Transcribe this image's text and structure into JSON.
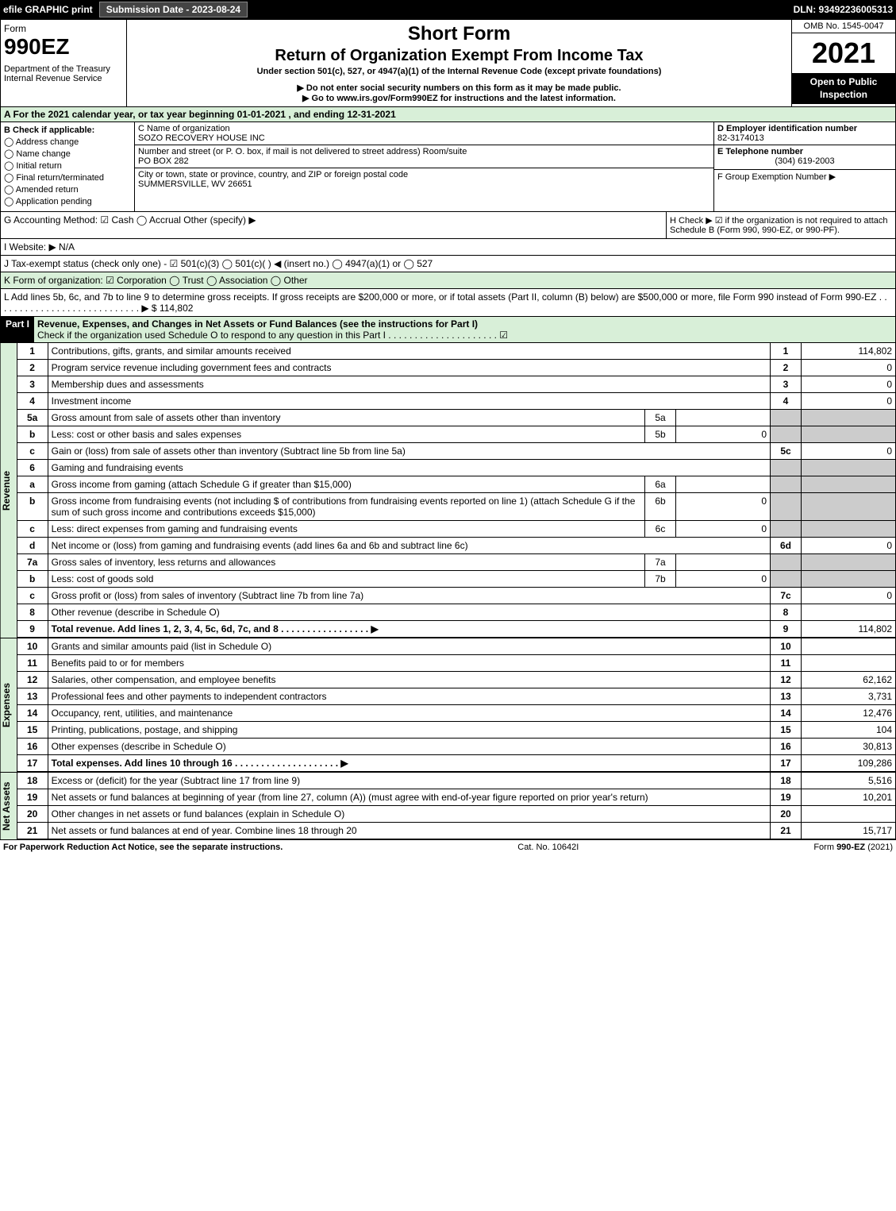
{
  "topbar": {
    "efile": "efile GRAPHIC print",
    "subdate": "Submission Date - 2023-08-24",
    "dln": "DLN: 93492236005313"
  },
  "header": {
    "form": "Form",
    "formnum": "990EZ",
    "dept": "Department of the Treasury\nInternal Revenue Service",
    "short": "Short Form",
    "title": "Return of Organization Exempt From Income Tax",
    "under": "Under section 501(c), 527, or 4947(a)(1) of the Internal Revenue Code (except private foundations)",
    "warn": "▶ Do not enter social security numbers on this form as it may be made public.",
    "goto": "▶ Go to www.irs.gov/Form990EZ for instructions and the latest information.",
    "omb": "OMB No. 1545-0047",
    "year": "2021",
    "open": "Open to Public Inspection"
  },
  "lineA": "A  For the 2021 calendar year, or tax year beginning 01-01-2021 , and ending 12-31-2021",
  "B": {
    "label": "B  Check if applicable:",
    "opts": [
      "Address change",
      "Name change",
      "Initial return",
      "Final return/terminated",
      "Amended return",
      "Application pending"
    ]
  },
  "C": {
    "nameLabel": "C Name of organization",
    "name": "SOZO RECOVERY HOUSE INC",
    "addrLabel": "Number and street (or P. O. box, if mail is not delivered to street address)      Room/suite",
    "addr": "PO BOX 282",
    "cityLabel": "City or town, state or province, country, and ZIP or foreign postal code",
    "city": "SUMMERSVILLE, WV  26651"
  },
  "D": {
    "einLabel": "D Employer identification number",
    "ein": "82-3174013",
    "telLabel": "E Telephone number",
    "tel": "(304) 619-2003",
    "grpLabel": "F Group Exemption Number  ▶"
  },
  "G": "G Accounting Method:   ☑ Cash  ◯ Accrual   Other (specify) ▶",
  "H": "H   Check ▶  ☑  if the organization is not required to attach Schedule B (Form 990, 990-EZ, or 990-PF).",
  "I": "I Website: ▶ N/A",
  "J": "J Tax-exempt status (check only one) -  ☑ 501(c)(3) ◯ 501(c)(  ) ◀ (insert no.) ◯ 4947(a)(1) or ◯ 527",
  "K": "K Form of organization:   ☑ Corporation  ◯ Trust  ◯ Association  ◯ Other",
  "L": "L Add lines 5b, 6c, and 7b to line 9 to determine gross receipts. If gross receipts are $200,000 or more, or if total assets (Part II, column (B) below) are $500,000 or more, file Form 990 instead of Form 990-EZ  .  .  .  .  .  .  .  .  .  .  .  .  .  .  .  .  .  .  .  .  .  .  .  .  .  .  .  .   ▶ $ 114,802",
  "part1": {
    "hdr": "Part I",
    "title": "Revenue, Expenses, and Changes in Net Assets or Fund Balances (see the instructions for Part I)",
    "check": "Check if the organization used Schedule O to respond to any question in this Part I .  .  .  .  .  .  .  .  .  .  .  .  .  .  .  .  .  .  .  .  .  ☑"
  },
  "sections": {
    "rev": "Revenue",
    "exp": "Expenses",
    "net": "Net Assets"
  },
  "lines": [
    {
      "n": "1",
      "d": "Contributions, gifts, grants, and similar amounts received",
      "b": "1",
      "v": "114,802"
    },
    {
      "n": "2",
      "d": "Program service revenue including government fees and contracts",
      "b": "2",
      "v": "0"
    },
    {
      "n": "3",
      "d": "Membership dues and assessments",
      "b": "3",
      "v": "0"
    },
    {
      "n": "4",
      "d": "Investment income",
      "b": "4",
      "v": "0"
    },
    {
      "n": "5a",
      "d": "Gross amount from sale of assets other than inventory",
      "sb": "5a",
      "sv": "",
      "grey": true
    },
    {
      "n": "b",
      "d": "Less: cost or other basis and sales expenses",
      "sb": "5b",
      "sv": "0",
      "grey": true
    },
    {
      "n": "c",
      "d": "Gain or (loss) from sale of assets other than inventory (Subtract line 5b from line 5a)",
      "b": "5c",
      "v": "0"
    },
    {
      "n": "6",
      "d": "Gaming and fundraising events",
      "grey": true
    },
    {
      "n": "a",
      "d": "Gross income from gaming (attach Schedule G if greater than $15,000)",
      "sb": "6a",
      "sv": "",
      "grey": true
    },
    {
      "n": "b",
      "d": "Gross income from fundraising events (not including $                              of contributions from fundraising events reported on line 1) (attach Schedule G if the sum of such gross income and contributions exceeds $15,000)",
      "sb": "6b",
      "sv": "0",
      "grey": true
    },
    {
      "n": "c",
      "d": "Less: direct expenses from gaming and fundraising events",
      "sb": "6c",
      "sv": "0",
      "grey": true
    },
    {
      "n": "d",
      "d": "Net income or (loss) from gaming and fundraising events (add lines 6a and 6b and subtract line 6c)",
      "b": "6d",
      "v": "0"
    },
    {
      "n": "7a",
      "d": "Gross sales of inventory, less returns and allowances",
      "sb": "7a",
      "sv": "",
      "grey": true
    },
    {
      "n": "b",
      "d": "Less: cost of goods sold",
      "sb": "7b",
      "sv": "0",
      "grey": true
    },
    {
      "n": "c",
      "d": "Gross profit or (loss) from sales of inventory (Subtract line 7b from line 7a)",
      "b": "7c",
      "v": "0"
    },
    {
      "n": "8",
      "d": "Other revenue (describe in Schedule O)",
      "b": "8",
      "v": ""
    },
    {
      "n": "9",
      "d": "Total revenue. Add lines 1, 2, 3, 4, 5c, 6d, 7c, and 8   .  .  .  .  .  .  .  .  .  .  .  .  .  .  .  .  .  ▶",
      "b": "9",
      "v": "114,802",
      "bold": true
    }
  ],
  "exp": [
    {
      "n": "10",
      "d": "Grants and similar amounts paid (list in Schedule O)",
      "b": "10",
      "v": ""
    },
    {
      "n": "11",
      "d": "Benefits paid to or for members",
      "b": "11",
      "v": ""
    },
    {
      "n": "12",
      "d": "Salaries, other compensation, and employee benefits",
      "b": "12",
      "v": "62,162"
    },
    {
      "n": "13",
      "d": "Professional fees and other payments to independent contractors",
      "b": "13",
      "v": "3,731"
    },
    {
      "n": "14",
      "d": "Occupancy, rent, utilities, and maintenance",
      "b": "14",
      "v": "12,476"
    },
    {
      "n": "15",
      "d": "Printing, publications, postage, and shipping",
      "b": "15",
      "v": "104"
    },
    {
      "n": "16",
      "d": "Other expenses (describe in Schedule O)",
      "b": "16",
      "v": "30,813"
    },
    {
      "n": "17",
      "d": "Total expenses. Add lines 10 through 16     .  .  .  .  .  .  .  .  .  .  .  .  .  .  .  .  .  .  .  .  ▶",
      "b": "17",
      "v": "109,286",
      "bold": true
    }
  ],
  "net": [
    {
      "n": "18",
      "d": "Excess or (deficit) for the year (Subtract line 17 from line 9)",
      "b": "18",
      "v": "5,516"
    },
    {
      "n": "19",
      "d": "Net assets or fund balances at beginning of year (from line 27, column (A)) (must agree with end-of-year figure reported on prior year's return)",
      "b": "19",
      "v": "10,201"
    },
    {
      "n": "20",
      "d": "Other changes in net assets or fund balances (explain in Schedule O)",
      "b": "20",
      "v": ""
    },
    {
      "n": "21",
      "d": "Net assets or fund balances at end of year. Combine lines 18 through 20",
      "b": "21",
      "v": "15,717"
    }
  ],
  "footer": {
    "left": "For Paperwork Reduction Act Notice, see the separate instructions.",
    "mid": "Cat. No. 10642I",
    "right": "Form 990-EZ (2021)"
  }
}
